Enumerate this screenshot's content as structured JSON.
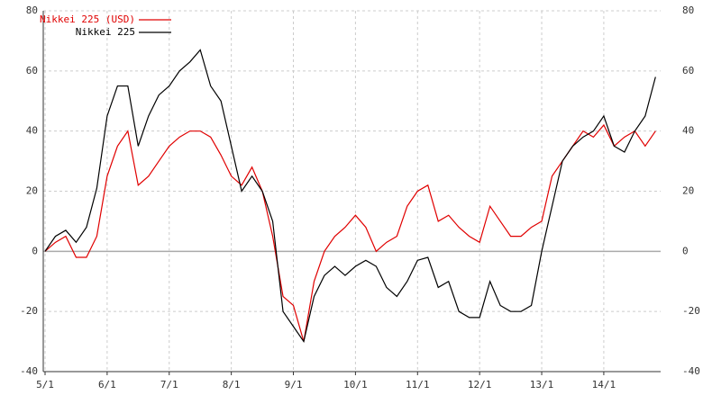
{
  "chart_data": {
    "type": "line",
    "categories": [
      "5/1",
      null,
      null,
      null,
      null,
      null,
      "6/1",
      null,
      null,
      null,
      null,
      null,
      "7/1",
      null,
      null,
      null,
      null,
      null,
      "8/1",
      null,
      null,
      null,
      null,
      null,
      "9/1",
      null,
      null,
      null,
      null,
      null,
      "10/1",
      null,
      null,
      null,
      null,
      null,
      "11/1",
      null,
      null,
      null,
      null,
      null,
      "12/1",
      null,
      null,
      null,
      null,
      null,
      "13/1",
      null,
      null,
      null,
      null,
      null,
      "14/1",
      null,
      null,
      null,
      null,
      null
    ],
    "series": [
      {
        "name": "Nikkei 225 (USD)",
        "color": "#e00000",
        "values": [
          0,
          3,
          5,
          -2,
          -2,
          5,
          25,
          35,
          40,
          22,
          25,
          30,
          35,
          38,
          40,
          40,
          38,
          32,
          25,
          22,
          28,
          20,
          5,
          -15,
          -18,
          -30,
          -10,
          0,
          5,
          8,
          12,
          8,
          0,
          3,
          5,
          15,
          20,
          22,
          10,
          12,
          8,
          5,
          3,
          15,
          10,
          5,
          5,
          8,
          10,
          25,
          30,
          35,
          40,
          38,
          42,
          35,
          38,
          40,
          35,
          40
        ]
      },
      {
        "name": "Nikkei 225",
        "color": "#000000",
        "values": [
          0,
          5,
          7,
          3,
          8,
          21,
          45,
          55,
          55,
          35,
          45,
          52,
          55,
          60,
          63,
          67,
          55,
          50,
          35,
          20,
          25,
          20,
          10,
          -20,
          -25,
          -30,
          -15,
          -8,
          -5,
          -8,
          -5,
          -3,
          -5,
          -12,
          -15,
          -10,
          -3,
          -2,
          -12,
          -10,
          -20,
          -22,
          -22,
          -10,
          -18,
          -20,
          -20,
          -18,
          0,
          15,
          30,
          35,
          38,
          40,
          45,
          35,
          33,
          40,
          45,
          58
        ]
      }
    ],
    "ylim": [
      -40,
      80
    ],
    "yticks": [
      -40,
      -20,
      0,
      20,
      40,
      60,
      80
    ],
    "grid": true,
    "legend": "top-left"
  }
}
